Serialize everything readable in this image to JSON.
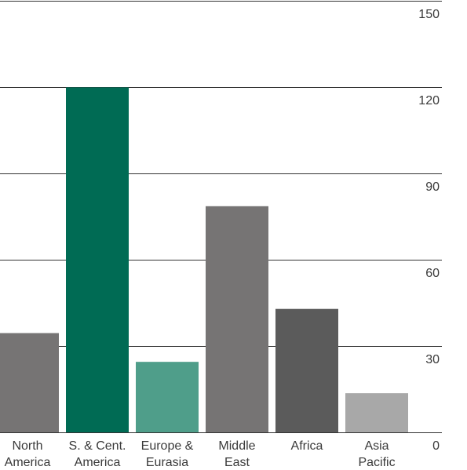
{
  "chart_data": {
    "type": "bar",
    "categories": [
      [
        "North",
        "America"
      ],
      [
        "S. & Cent.",
        "America"
      ],
      [
        "Europe &",
        "Eurasia"
      ],
      [
        "Middle",
        "East"
      ],
      [
        "Africa"
      ],
      [
        "Asia",
        "Pacific"
      ]
    ],
    "values": [
      34.5,
      119.9,
      24.5,
      78.6,
      42.9,
      13.6
    ],
    "bar_colors": [
      "#767474",
      "#006b54",
      "#4f9e8a",
      "#767474",
      "#5b5b5b",
      "#a8a8a8"
    ],
    "yticks": [
      0,
      30,
      60,
      90,
      120,
      150
    ],
    "ylim": [
      0,
      150
    ],
    "grid": true,
    "yaxis_position": "right"
  }
}
